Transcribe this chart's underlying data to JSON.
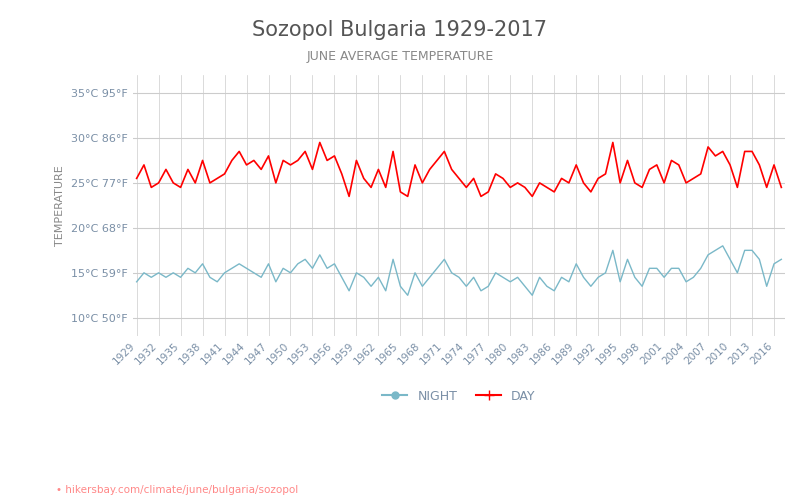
{
  "title": "Sozopol Bulgaria 1929-2017",
  "subtitle": "JUNE AVERAGE TEMPERATURE",
  "ylabel": "TEMPERATURE",
  "website": "hikersbay.com/climate/june/bulgaria/sozopol",
  "background_color": "#ffffff",
  "title_color": "#555555",
  "subtitle_color": "#888888",
  "ylabel_color": "#888888",
  "axis_label_color": "#7a8fa6",
  "grid_color": "#cccccc",
  "day_color": "#ff0000",
  "night_color": "#7ab8c8",
  "years": [
    1929,
    1930,
    1931,
    1932,
    1933,
    1934,
    1935,
    1936,
    1937,
    1938,
    1939,
    1940,
    1941,
    1942,
    1943,
    1944,
    1945,
    1946,
    1947,
    1948,
    1949,
    1950,
    1951,
    1952,
    1953,
    1954,
    1955,
    1956,
    1957,
    1958,
    1959,
    1960,
    1961,
    1962,
    1963,
    1964,
    1965,
    1966,
    1967,
    1968,
    1969,
    1970,
    1971,
    1972,
    1973,
    1974,
    1975,
    1976,
    1977,
    1978,
    1979,
    1980,
    1981,
    1982,
    1983,
    1984,
    1985,
    1986,
    1987,
    1988,
    1989,
    1990,
    1991,
    1992,
    1993,
    1994,
    1995,
    1996,
    1997,
    1998,
    1999,
    2000,
    2001,
    2002,
    2003,
    2004,
    2005,
    2006,
    2007,
    2008,
    2009,
    2010,
    2011,
    2012,
    2013,
    2014,
    2015,
    2016,
    2017
  ],
  "day_temps": [
    25.5,
    27.0,
    24.5,
    25.0,
    26.5,
    25.0,
    24.5,
    26.5,
    25.0,
    27.5,
    25.0,
    25.5,
    26.0,
    27.5,
    28.5,
    27.0,
    27.5,
    26.5,
    28.0,
    25.0,
    27.5,
    27.0,
    27.5,
    28.5,
    26.5,
    29.5,
    27.5,
    28.0,
    26.0,
    23.5,
    27.5,
    25.5,
    24.5,
    26.5,
    24.5,
    28.5,
    24.0,
    23.5,
    27.0,
    25.0,
    26.5,
    27.5,
    28.5,
    26.5,
    25.5,
    24.5,
    25.5,
    23.5,
    24.0,
    26.0,
    25.5,
    24.5,
    25.0,
    24.5,
    23.5,
    25.0,
    24.5,
    24.0,
    25.5,
    25.0,
    27.0,
    25.0,
    24.0,
    25.5,
    26.0,
    29.5,
    25.0,
    27.5,
    25.0,
    24.5,
    26.5,
    27.0,
    25.0,
    27.5,
    27.0,
    25.0,
    25.5,
    26.0,
    29.0,
    28.0,
    28.5,
    27.0,
    24.5,
    28.5,
    28.5,
    27.0,
    24.5,
    27.0,
    24.5
  ],
  "night_temps": [
    14.0,
    15.0,
    14.5,
    15.0,
    14.5,
    15.0,
    14.5,
    15.5,
    15.0,
    16.0,
    14.5,
    14.0,
    15.0,
    15.5,
    16.0,
    15.5,
    15.0,
    14.5,
    16.0,
    14.0,
    15.5,
    15.0,
    16.0,
    16.5,
    15.5,
    17.0,
    15.5,
    16.0,
    14.5,
    13.0,
    15.0,
    14.5,
    13.5,
    14.5,
    13.0,
    16.5,
    13.5,
    12.5,
    15.0,
    13.5,
    14.5,
    15.5,
    16.5,
    15.0,
    14.5,
    13.5,
    14.5,
    13.0,
    13.5,
    15.0,
    14.5,
    14.0,
    14.5,
    13.5,
    12.5,
    14.5,
    13.5,
    13.0,
    14.5,
    14.0,
    16.0,
    14.5,
    13.5,
    14.5,
    15.0,
    17.5,
    14.0,
    16.5,
    14.5,
    13.5,
    15.5,
    15.5,
    14.5,
    15.5,
    15.5,
    14.0,
    14.5,
    15.5,
    17.0,
    17.5,
    18.0,
    16.5,
    15.0,
    17.5,
    17.5,
    16.5,
    13.5,
    16.0,
    16.5
  ],
  "ylim": [
    8,
    37
  ],
  "yticks_c": [
    10,
    15,
    20,
    25,
    30,
    35
  ],
  "yticks_f": [
    50,
    59,
    68,
    77,
    86,
    95
  ],
  "xtick_years": [
    1929,
    1932,
    1935,
    1938,
    1941,
    1944,
    1947,
    1950,
    1953,
    1956,
    1959,
    1962,
    1965,
    1968,
    1971,
    1974,
    1977,
    1980,
    1983,
    1986,
    1989,
    1992,
    1995,
    1998,
    2001,
    2004,
    2007,
    2010,
    2013,
    2016
  ],
  "legend_night_label": "NIGHT",
  "legend_day_label": "DAY"
}
